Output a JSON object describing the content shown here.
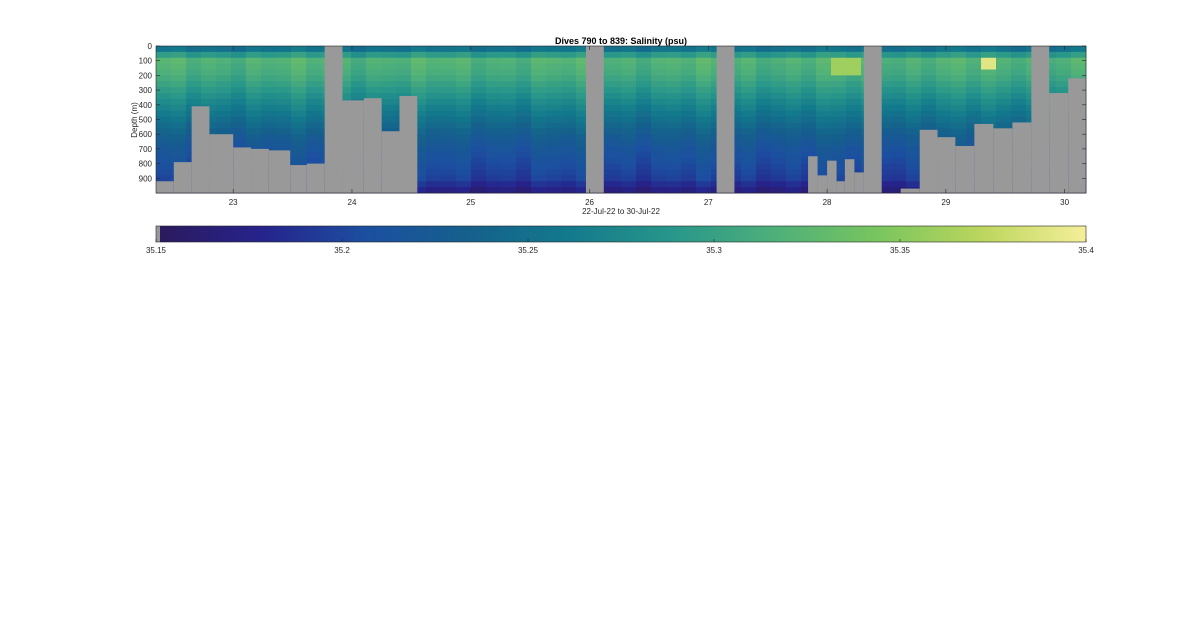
{
  "chart_data": {
    "type": "heatmap",
    "title": "Dives 790 to 839: Salinity (psu)",
    "xlabel": "22-Jul-22 to 30-Jul-22",
    "ylabel": "Depth (m)",
    "x_range": [
      22.35,
      30.18
    ],
    "y_range": [
      0,
      1000
    ],
    "x_ticks": [
      23,
      24,
      25,
      26,
      27,
      28,
      29,
      30
    ],
    "x_tick_labels": [
      "23",
      "24",
      "25",
      "26",
      "27",
      "28",
      "29",
      "30"
    ],
    "y_ticks": [
      0,
      100,
      200,
      300,
      400,
      500,
      600,
      700,
      800,
      900
    ],
    "y_tick_labels": [
      "0",
      "100",
      "200",
      "300",
      "400",
      "500",
      "600",
      "700",
      "800",
      "900"
    ],
    "colorbar": {
      "range": [
        35.15,
        35.4
      ],
      "ticks": [
        35.15,
        35.2,
        35.25,
        35.3,
        35.35,
        35.4
      ],
      "tick_labels": [
        "35.15",
        "35.2",
        "35.25",
        "35.3",
        "35.35",
        "35.4"
      ],
      "colormap": "parula-like",
      "colormap_stops": [
        "#2b1a5e",
        "#26238c",
        "#1c4fa0",
        "#15608c",
        "#137a8c",
        "#29978a",
        "#4fb07a",
        "#7ac65e",
        "#bcd65e",
        "#f5ef9a"
      ],
      "nodata_color": "#999999"
    },
    "profile_depth_limits": [
      {
        "x0": 22.35,
        "x1": 22.5,
        "max_depth": 920
      },
      {
        "x0": 22.5,
        "x1": 22.65,
        "max_depth": 790
      },
      {
        "x0": 22.65,
        "x1": 22.8,
        "max_depth": 410
      },
      {
        "x0": 22.8,
        "x1": 23.0,
        "max_depth": 600
      },
      {
        "x0": 23.0,
        "x1": 23.15,
        "max_depth": 690
      },
      {
        "x0": 23.15,
        "x1": 23.3,
        "max_depth": 700
      },
      {
        "x0": 23.3,
        "x1": 23.48,
        "max_depth": 710
      },
      {
        "x0": 23.48,
        "x1": 23.62,
        "max_depth": 810
      },
      {
        "x0": 23.62,
        "x1": 23.77,
        "max_depth": 800
      },
      {
        "x0": 23.77,
        "x1": 23.92,
        "max_depth": 0
      },
      {
        "x0": 23.92,
        "x1": 24.1,
        "max_depth": 370
      },
      {
        "x0": 24.1,
        "x1": 24.25,
        "max_depth": 355
      },
      {
        "x0": 24.25,
        "x1": 24.4,
        "max_depth": 580
      },
      {
        "x0": 24.4,
        "x1": 24.55,
        "max_depth": 340
      },
      {
        "x0": 24.55,
        "x1": 25.97,
        "max_depth": 1000
      },
      {
        "x0": 25.97,
        "x1": 26.12,
        "max_depth": 0
      },
      {
        "x0": 26.12,
        "x1": 27.07,
        "max_depth": 1000
      },
      {
        "x0": 27.07,
        "x1": 27.22,
        "max_depth": 0
      },
      {
        "x0": 27.22,
        "x1": 27.84,
        "max_depth": 1000
      },
      {
        "x0": 27.84,
        "x1": 27.92,
        "max_depth": 750
      },
      {
        "x0": 27.92,
        "x1": 28.0,
        "max_depth": 880
      },
      {
        "x0": 28.0,
        "x1": 28.08,
        "max_depth": 780
      },
      {
        "x0": 28.08,
        "x1": 28.15,
        "max_depth": 920
      },
      {
        "x0": 28.15,
        "x1": 28.23,
        "max_depth": 770
      },
      {
        "x0": 28.23,
        "x1": 28.31,
        "max_depth": 860
      },
      {
        "x0": 28.31,
        "x1": 28.46,
        "max_depth": 0
      },
      {
        "x0": 28.46,
        "x1": 28.62,
        "max_depth": 1000
      },
      {
        "x0": 28.62,
        "x1": 28.78,
        "max_depth": 970
      },
      {
        "x0": 28.78,
        "x1": 28.93,
        "max_depth": 570
      },
      {
        "x0": 28.93,
        "x1": 29.08,
        "max_depth": 620
      },
      {
        "x0": 29.08,
        "x1": 29.24,
        "max_depth": 680
      },
      {
        "x0": 29.24,
        "x1": 29.4,
        "max_depth": 530
      },
      {
        "x0": 29.4,
        "x1": 29.56,
        "max_depth": 560
      },
      {
        "x0": 29.56,
        "x1": 29.72,
        "max_depth": 520
      },
      {
        "x0": 29.72,
        "x1": 29.87,
        "max_depth": 0
      },
      {
        "x0": 29.87,
        "x1": 30.03,
        "max_depth": 320
      },
      {
        "x0": 30.03,
        "x1": 30.18,
        "max_depth": 220
      }
    ],
    "salinity_by_depth": [
      {
        "depth": 0,
        "salinity": 35.22
      },
      {
        "depth": 30,
        "salinity": 35.27
      },
      {
        "depth": 100,
        "salinity": 35.32
      },
      {
        "depth": 200,
        "salinity": 35.31
      },
      {
        "depth": 300,
        "salinity": 35.29
      },
      {
        "depth": 400,
        "salinity": 35.27
      },
      {
        "depth": 500,
        "salinity": 35.25
      },
      {
        "depth": 600,
        "salinity": 35.23
      },
      {
        "depth": 700,
        "salinity": 35.215
      },
      {
        "depth": 800,
        "salinity": 35.205
      },
      {
        "depth": 900,
        "salinity": 35.195
      },
      {
        "depth": 1000,
        "salinity": 35.165
      }
    ],
    "high_salinity_patches": [
      {
        "x0": 28.08,
        "x1": 28.3,
        "depth0": 80,
        "depth1": 180,
        "salinity": 35.36
      },
      {
        "x0": 29.3,
        "x1": 29.47,
        "depth0": 80,
        "depth1": 170,
        "salinity": 35.39
      }
    ]
  }
}
